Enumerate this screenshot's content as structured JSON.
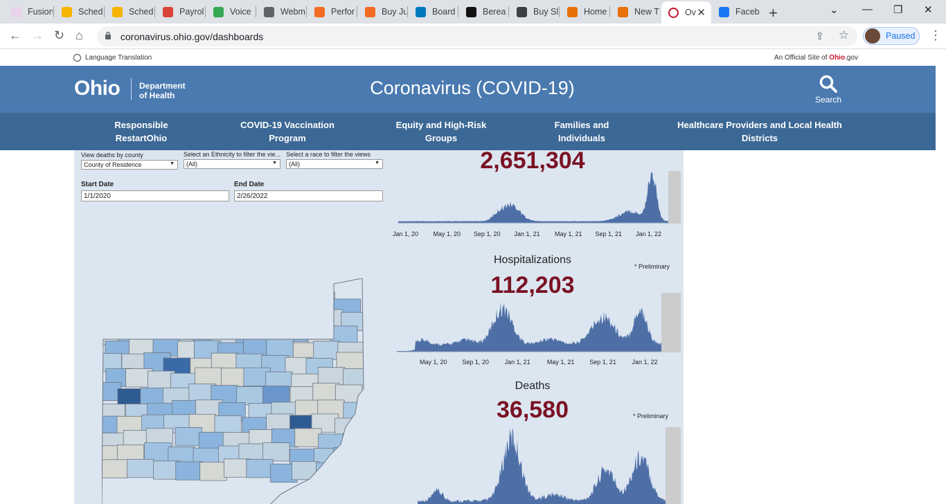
{
  "browser": {
    "tabs": [
      {
        "label": "Fusion",
        "color": "#e8d3e8"
      },
      {
        "label": "Sched",
        "color": "#f4b400"
      },
      {
        "label": "Sched",
        "color": "#f4b400"
      },
      {
        "label": "Payrol",
        "color": "#db4437"
      },
      {
        "label": "Voice",
        "color": "#34a853"
      },
      {
        "label": "Webm",
        "color": "#5f6368"
      },
      {
        "label": "Perfor",
        "color": "#f26b21"
      },
      {
        "label": "Buy Ju",
        "color": "#f26b21"
      },
      {
        "label": "Board",
        "color": "#0079bf"
      },
      {
        "label": "Berea",
        "color": "#111111"
      },
      {
        "label": "Buy Sl",
        "color": "#3c4043"
      },
      {
        "label": "Home",
        "color": "#e8710a"
      },
      {
        "label": "New T",
        "color": "#e8710a"
      },
      {
        "label": "Ov",
        "color": "#c8102e"
      },
      {
        "label": "Faceb",
        "color": "#1877f2"
      }
    ],
    "url": "coronavirus.ohio.gov/dashboards",
    "profile_label": "Paused"
  },
  "site": {
    "language_label": "Language Translation",
    "official_prefix": "An Official Site of ",
    "official_brand": "Ohio",
    "official_suffix": ".gov",
    "logo_text": "Ohio",
    "dept_line1": "Department",
    "dept_line2": "of Health",
    "title": "Coronavirus (COVID-19)",
    "search_label": "Search",
    "nav": [
      {
        "line1": "Responsible",
        "line2": "RestartOhio"
      },
      {
        "line1": "COVID-19 Vaccination",
        "line2": "Program"
      },
      {
        "line1": "Equity and High-Risk",
        "line2": "Groups"
      },
      {
        "line1": "Families and",
        "line2": "Individuals"
      },
      {
        "line1": "Healthcare Providers and Local Health",
        "line2": "Districts"
      }
    ]
  },
  "filters": {
    "county_label": "View deaths by county",
    "county_value": "County of Residence",
    "ethnicity_label": "Select an Ethnicity to filter the vie...",
    "ethnicity_value": "(All)",
    "race_label": "Select a race to filter the views",
    "race_value": "(All)",
    "start_label": "Start Date",
    "start_value": "1/1/2020",
    "end_label": "End Date",
    "end_value": "2/26/2022"
  },
  "cases": {
    "total": "2,651,304",
    "axis": [
      "Jan 1, 20",
      "May 1, 20",
      "Sep 1, 20",
      "Jan 1, 21",
      "May 1, 21",
      "Sep 1, 21",
      "Jan 1, 22"
    ]
  },
  "hospitalizations": {
    "title": "Hospitalizations",
    "total": "112,203",
    "note": "* Preliminary",
    "axis": [
      "May 1, 20",
      "Sep 1, 20",
      "Jan 1, 21",
      "May 1, 21",
      "Sep 1, 21",
      "Jan 1, 22"
    ]
  },
  "deaths": {
    "title": "Deaths",
    "total": "36,580",
    "note": "* Preliminary"
  },
  "colors": {
    "chart_fill": "#4e6fa6",
    "kpi": "#7a1224",
    "header": "#4a7ab0",
    "nav": "#3c6895",
    "map_dark": "#2f5b93"
  }
}
